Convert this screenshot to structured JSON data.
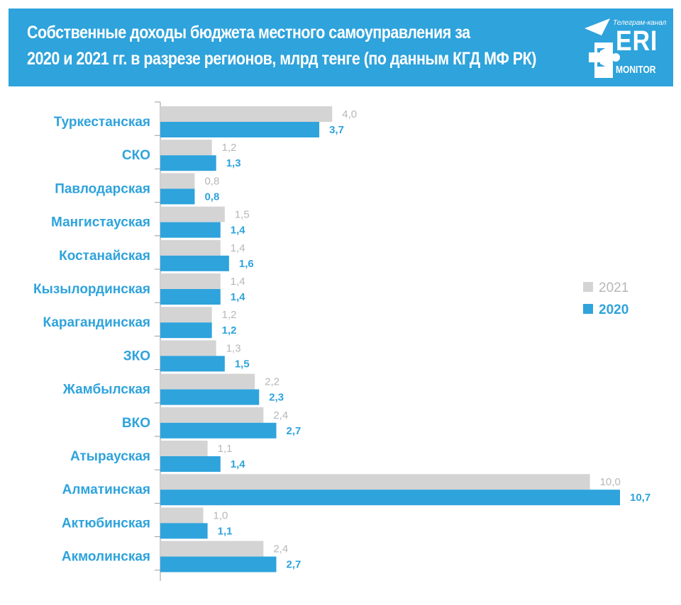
{
  "header": {
    "title_line1": "Собственные доходы бюджета местного самоуправления за",
    "title_line2": "2020 и 2021 гг. в разрезе регионов, млрд тенге (по данным КГД МФ РК)",
    "logo": {
      "channel": "Телеграм-канал",
      "name": "ERI",
      "subname": "MONITOR",
      "icon": "megaphone-icon"
    }
  },
  "chart_data": {
    "type": "bar",
    "orientation": "horizontal",
    "categories": [
      "Туркестанская",
      "СКО",
      "Павлодарская",
      "Мангистауская",
      "Костанайская",
      "Кызылординская",
      "Карагандинская",
      "ЗКО",
      "Жамбылская",
      "ВКО",
      "Атырауская",
      "Алматинская",
      "Актюбинская",
      "Акмолинская"
    ],
    "series": [
      {
        "name": "2021",
        "color": "#d4d4d4",
        "label_color": "#b7b7b7",
        "values": [
          4.0,
          1.2,
          0.8,
          1.5,
          1.4,
          1.4,
          1.2,
          1.3,
          2.2,
          2.4,
          1.1,
          10.0,
          1.0,
          2.4
        ],
        "labels": [
          "4,0",
          "1,2",
          "0,8",
          "1,5",
          "1,4",
          "1,4",
          "1,2",
          "1,3",
          "2,2",
          "2,4",
          "1,1",
          "10,0",
          "1,0",
          "2,4"
        ]
      },
      {
        "name": "2020",
        "color": "#2ea3dc",
        "label_color": "#2ea3dc",
        "values": [
          3.7,
          1.3,
          0.8,
          1.4,
          1.6,
          1.4,
          1.2,
          1.5,
          2.3,
          2.7,
          1.4,
          10.7,
          1.1,
          2.7
        ],
        "labels": [
          "3,7",
          "1,3",
          "0,8",
          "1,4",
          "1,6",
          "1,4",
          "1,2",
          "1,5",
          "2,3",
          "2,7",
          "1,4",
          "10,7",
          "1,1",
          "2,7"
        ]
      }
    ],
    "xlim": [
      0,
      10.7
    ],
    "grid": false,
    "legend_position": "right",
    "legend": [
      "2021",
      "2020"
    ]
  }
}
